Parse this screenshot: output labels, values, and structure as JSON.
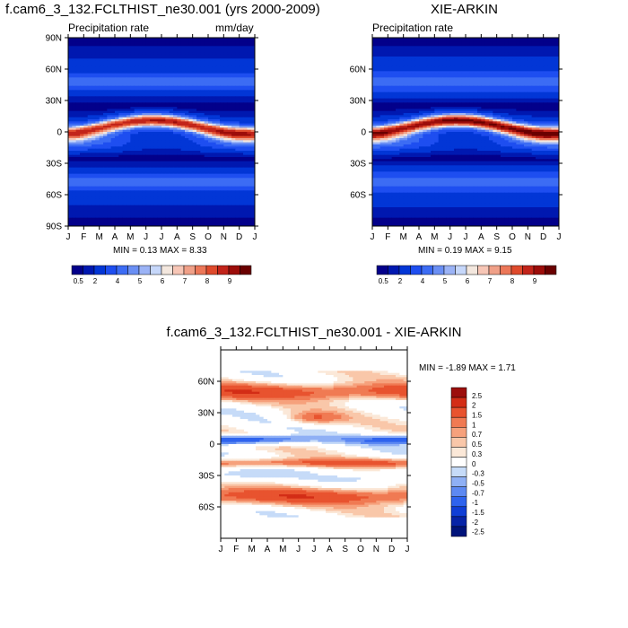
{
  "months": [
    "J",
    "F",
    "M",
    "A",
    "M",
    "J",
    "J",
    "A",
    "S",
    "O",
    "N",
    "D",
    "J"
  ],
  "colors": {
    "fullfield": [
      "#03008a",
      "#0018b0",
      "#0236d6",
      "#1e4ef0",
      "#3c6cf4",
      "#6a8ff4",
      "#9bb3f6",
      "#c6d7fa",
      "#f3e7de",
      "#f7c6b6",
      "#f0a088",
      "#ec7758",
      "#df4a2c",
      "#c2241a",
      "#9c0d0a",
      "#6a0000"
    ],
    "diff": [
      "#00137a",
      "#0623a7",
      "#0f3ed6",
      "#2e63ee",
      "#5d89f2",
      "#8fb0f5",
      "#c6dbf8",
      "#ffffff",
      "#fbe8d8",
      "#f9c7a9",
      "#f6a17c",
      "#f07a53",
      "#e8532f",
      "#d32d16",
      "#9c0e0c"
    ]
  },
  "chart_data": [
    {
      "type": "heatmap",
      "title": "f.cam6_3_132.FCLTHIST_ne30.001 (yrs 2000-2009)",
      "subtitle_left": "Precipitation rate",
      "subtitle_right": "mm/day",
      "x": [
        "J",
        "F",
        "M",
        "A",
        "M",
        "J",
        "J",
        "A",
        "S",
        "O",
        "N",
        "D",
        "J"
      ],
      "y_ticks": [
        "90N",
        "60N",
        "30N",
        "0",
        "30S",
        "60S",
        "90S"
      ],
      "ylim": [
        -90,
        90
      ],
      "min_label": "MIN =",
      "min": "0.13",
      "max_label": "MAX =",
      "max": "8.33",
      "colorbar_labels": [
        "0.5",
        "2",
        "4",
        "5",
        "6",
        "7",
        "8",
        "9"
      ]
    },
    {
      "type": "heatmap",
      "title": "XIE-ARKIN",
      "subtitle_left": "Precipitation rate",
      "x": [
        "J",
        "F",
        "M",
        "A",
        "M",
        "J",
        "J",
        "A",
        "S",
        "O",
        "N",
        "D",
        "J"
      ],
      "y_ticks": [
        "60N",
        "30N",
        "0",
        "30S",
        "60S"
      ],
      "ylim": [
        -90,
        90
      ],
      "min_label": "MIN =",
      "min": "0.19",
      "max_label": "MAX =",
      "max": "9.15",
      "colorbar_labels": [
        "0.5",
        "2",
        "4",
        "5",
        "6",
        "7",
        "8",
        "9"
      ]
    },
    {
      "type": "heatmap",
      "title": "f.cam6_3_132.FCLTHIST_ne30.001 - XIE-ARKIN",
      "x": [
        "J",
        "F",
        "M",
        "A",
        "M",
        "J",
        "J",
        "A",
        "S",
        "O",
        "N",
        "D",
        "J"
      ],
      "y_ticks": [
        "60N",
        "30N",
        "0",
        "30S",
        "60S"
      ],
      "ylim": [
        -90,
        90
      ],
      "min_label": "MIN =",
      "min": "-1.89",
      "max_label": "MAX =",
      "max": "1.71",
      "colorbar_labels": [
        "2.5",
        "2",
        "1.5",
        "1",
        "0.7",
        "0.5",
        "0.3",
        "0",
        "-0.3",
        "-0.5",
        "-0.7",
        "-1",
        "-1.5",
        "-2",
        "-2.5"
      ]
    }
  ]
}
